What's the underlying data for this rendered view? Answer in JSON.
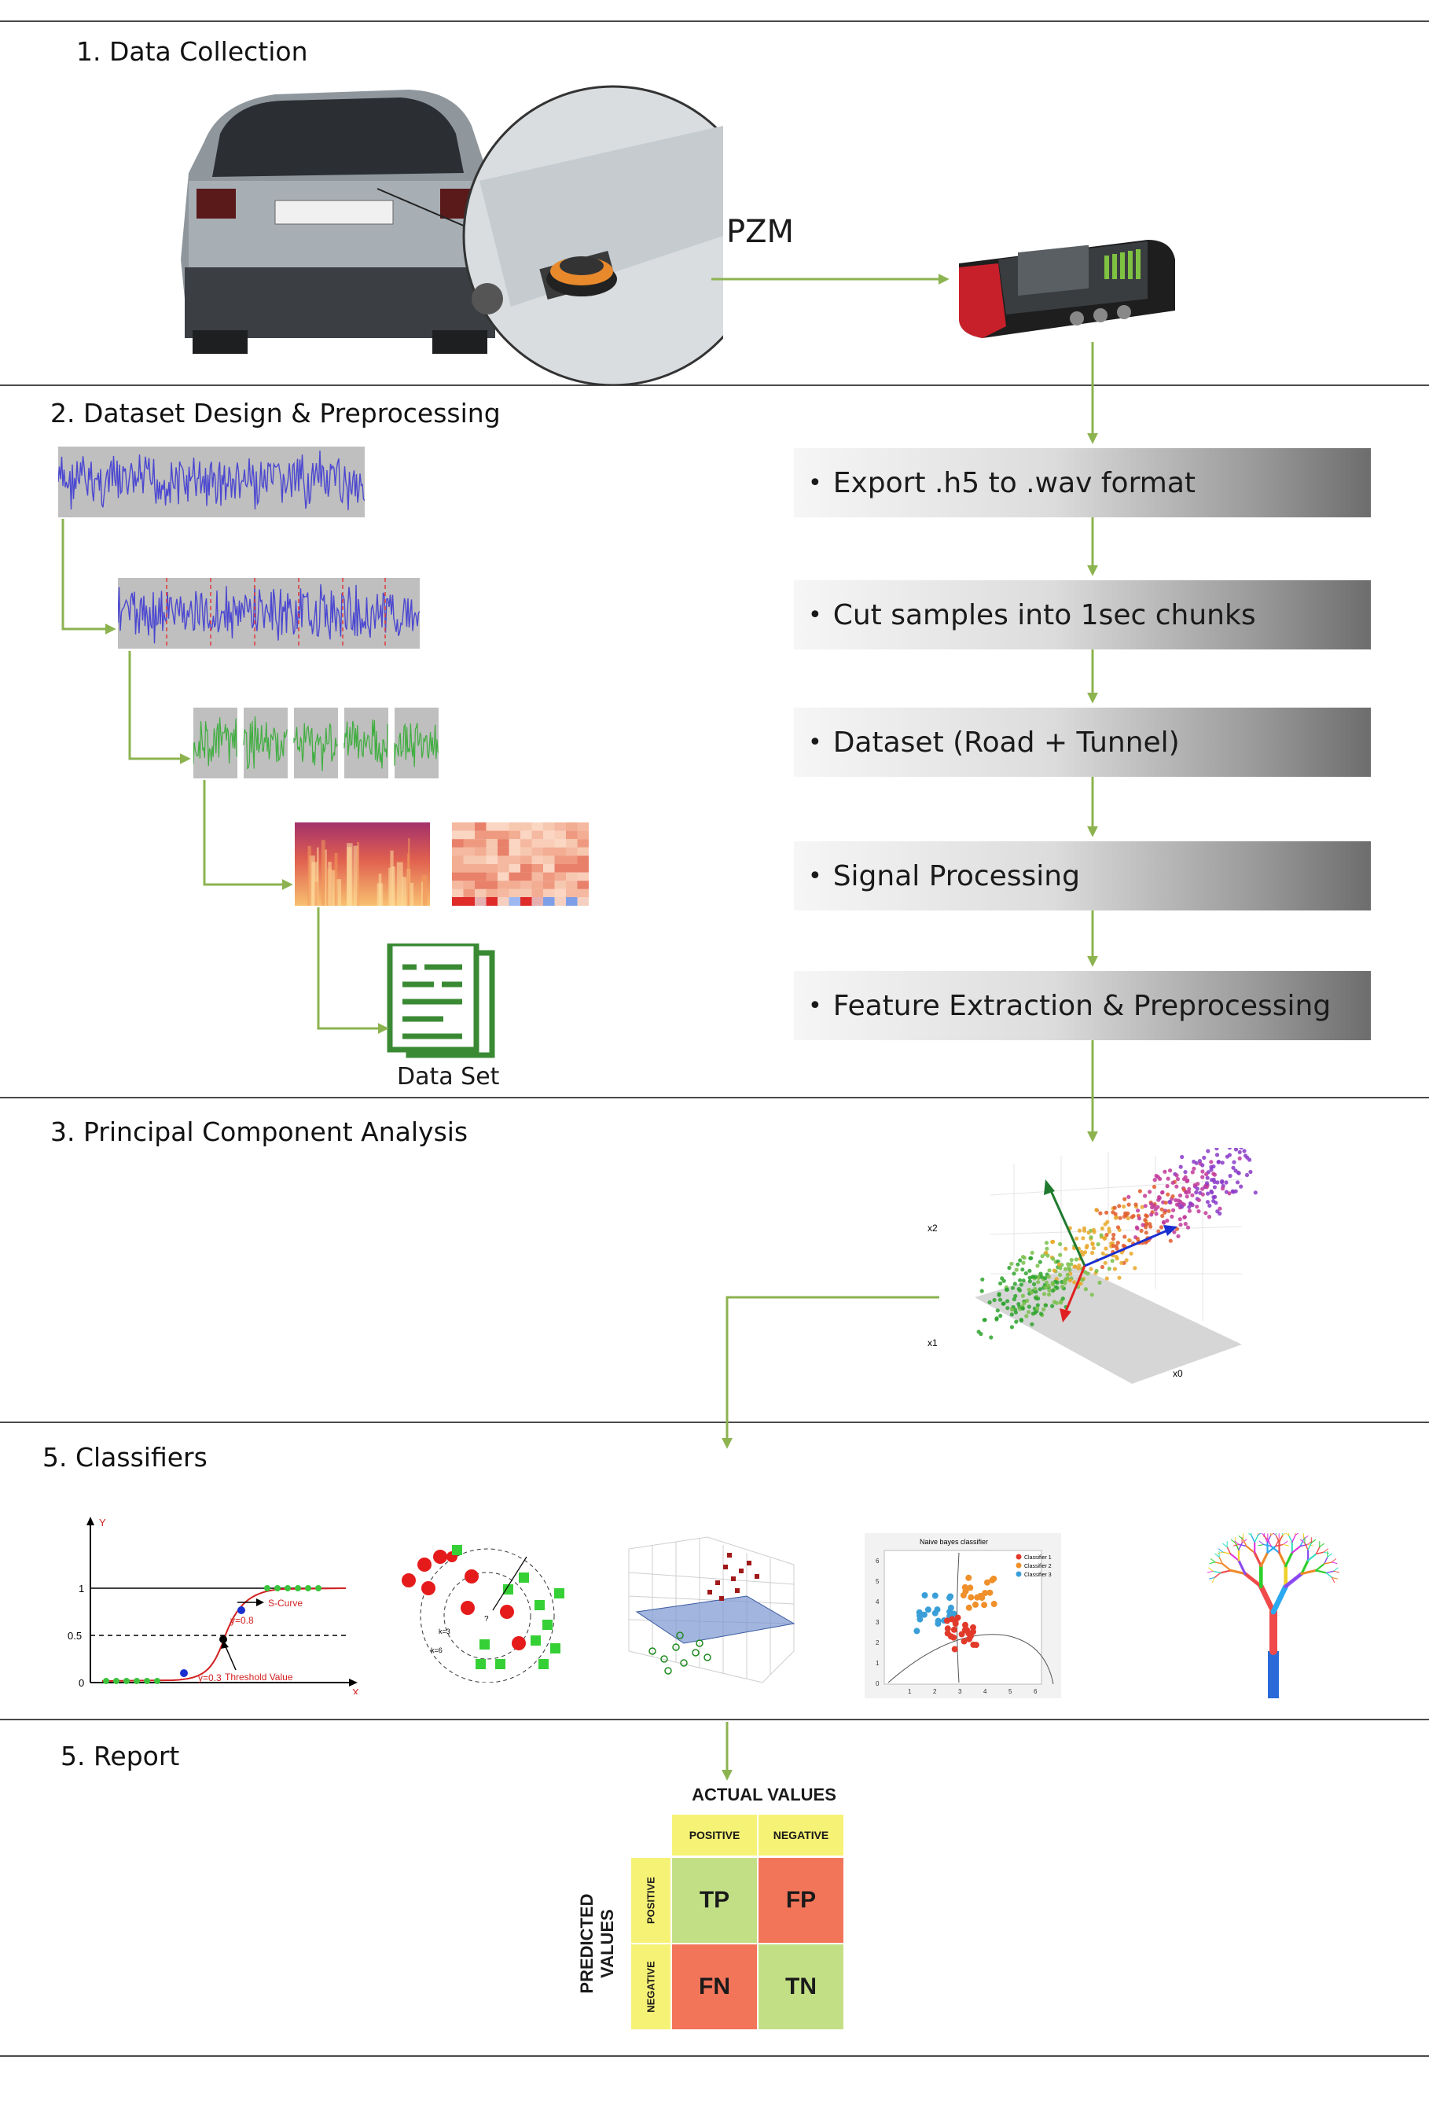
{
  "sections": {
    "s1": "1. Data Collection",
    "s2": "2. Dataset Design & Preprocessing",
    "s3": "3. Principal Component Analysis",
    "s4": "5. Classifiers",
    "s5": "5. Report"
  },
  "collection": {
    "sensor_label": "PZM"
  },
  "pipeline_steps": [
    "Export .h5 to .wav format",
    "Cut samples into 1sec chunks",
    "Dataset (Road + Tunnel)",
    "Signal Processing",
    "Feature Extraction & Preprocessing"
  ],
  "dataset_label": "Data Set",
  "pca": {
    "axis_x2": "x2",
    "axis_x1": "x1",
    "axis_x0": "x0"
  },
  "classifiers": {
    "logistic": {
      "y_axis": "Y",
      "x_axis": "X",
      "tick_1": "1",
      "tick_05": "0.5",
      "tick_0": "0",
      "s_curve": "S-Curve",
      "threshold": "Threshold Value",
      "y08": "y=0.8",
      "y03": "y=0.3"
    },
    "knn": {
      "k3": "k=3",
      "k6": "k=6",
      "q": "?"
    },
    "naive_bayes": {
      "title": "Naive bayes classifier",
      "legend": [
        "Classifier 1",
        "Classifier 2",
        "Classifier 3"
      ],
      "y_ticks": [
        "6",
        "5",
        "4",
        "3",
        "2",
        "1",
        "0"
      ],
      "x_ticks": [
        "1",
        "2",
        "3",
        "4",
        "5",
        "6"
      ]
    }
  },
  "confusion_matrix": {
    "actual": "ACTUAL VALUES",
    "predicted_1": "PREDICTED",
    "predicted_2": "VALUES",
    "positive": "POSITIVE",
    "negative": "NEGATIVE",
    "tp": "TP",
    "fp": "FP",
    "fn": "FN",
    "tn": "TN"
  },
  "colors": {
    "arrow": "#8cb350",
    "tp_tn": "#c3df86",
    "fp_fn": "#f2755a",
    "header": "#f6f276",
    "dataset_icon": "#3a8a34"
  }
}
